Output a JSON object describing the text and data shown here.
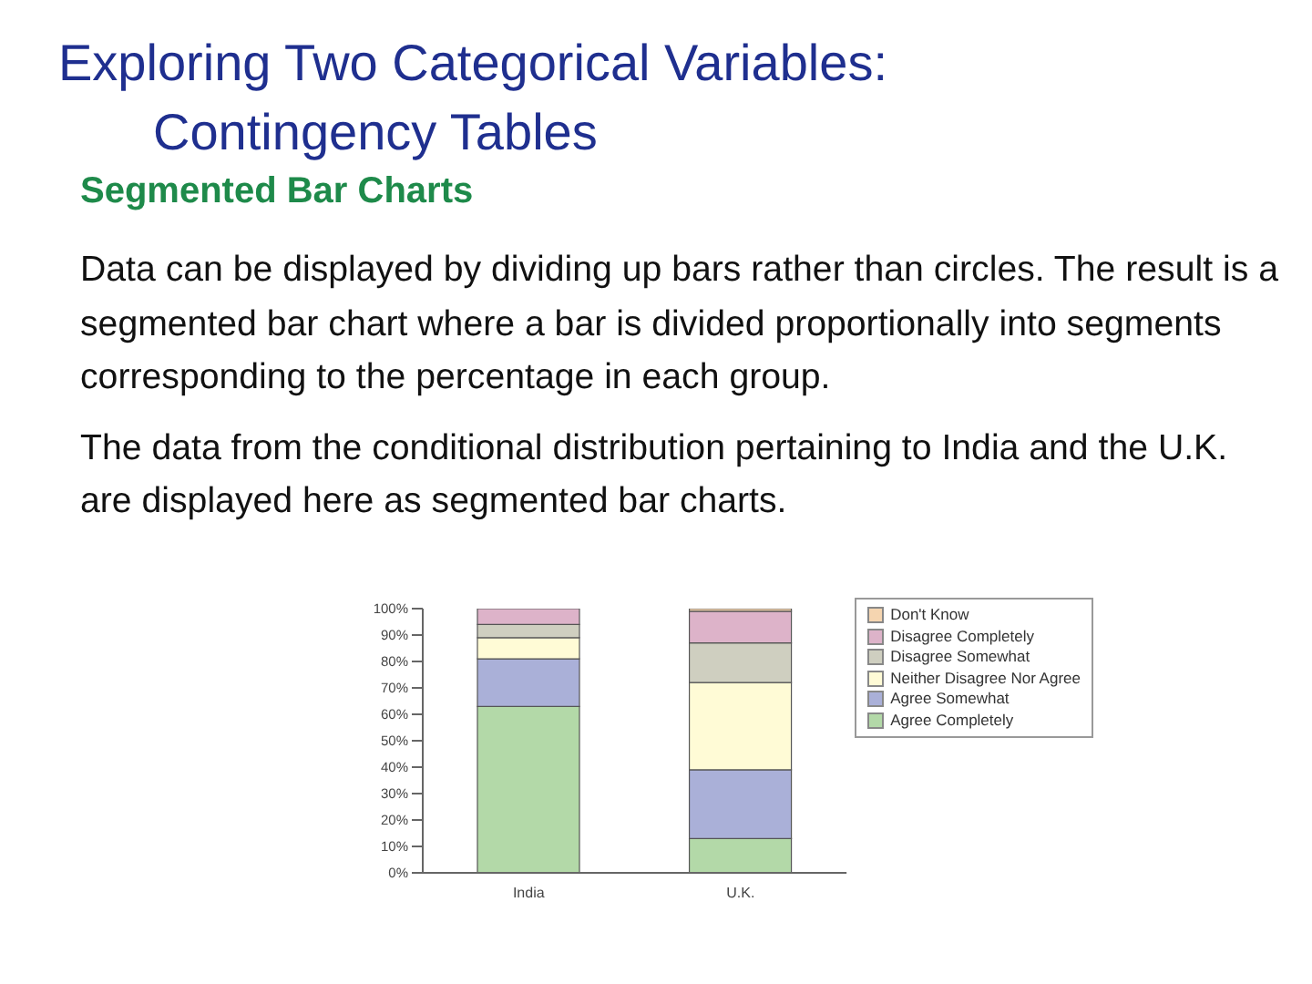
{
  "chart_data": {
    "type": "bar",
    "title": "Exploring Two Categorical Variables:\nContingency Tables",
    "subtitle": "Segmented Bar Charts",
    "annotations": [
      "Data can be displayed by dividing up bars rather than circles. The result is a segmented bar chart where a bar is divided proportionally into segments corresponding to the percentage in each group.",
      "The data from the conditional distribution pertaining to India and the U.K. are displayed here as segmented bar charts."
    ],
    "categories": [
      "India",
      "U.K."
    ],
    "stacked": true,
    "legend": "right",
    "ylim": [
      0,
      100
    ],
    "yticks": [
      {
        "value": 0,
        "label": "0%"
      },
      {
        "value": 10,
        "label": "10%"
      },
      {
        "value": 20,
        "label": "20%"
      },
      {
        "value": 30,
        "label": "30%"
      },
      {
        "value": 40,
        "label": "40%"
      },
      {
        "value": 50,
        "label": "50%"
      },
      {
        "value": 60,
        "label": "60%"
      },
      {
        "value": 70,
        "label": "70%"
      },
      {
        "value": 80,
        "label": "80%"
      },
      {
        "value": 90,
        "label": "90%"
      },
      {
        "value": 100,
        "label": "100%"
      }
    ],
    "series": [
      {
        "name": "Agree Completely",
        "color": "#b3d9a8",
        "values": [
          63,
          13
        ]
      },
      {
        "name": "Agree Somewhat",
        "color": "#aab0d8",
        "values": [
          18,
          26
        ]
      },
      {
        "name": "Neither Disagree Nor Agree",
        "color": "#fffbd6",
        "values": [
          8,
          33
        ]
      },
      {
        "name": "Disagree Somewhat",
        "color": "#cfcfc0",
        "values": [
          5,
          15
        ]
      },
      {
        "name": "Disagree Completely",
        "color": "#ddb3c9",
        "values": [
          6,
          12
        ]
      },
      {
        "name": "Don't Know",
        "color": "#f5d5b0",
        "values": [
          0,
          1
        ]
      }
    ]
  }
}
